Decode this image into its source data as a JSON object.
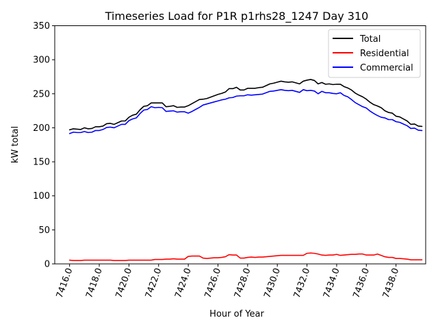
{
  "chart_data": {
    "type": "line",
    "title": "Timeseries Load for P1R p1rhs28_1247  Day 310",
    "xlabel": "Hour of Year",
    "ylabel": "kW total",
    "xlim": [
      7415.0,
      7440.0
    ],
    "ylim": [
      0,
      350
    ],
    "xticks": [
      7416.0,
      7418.0,
      7420.0,
      7422.0,
      7424.0,
      7426.0,
      7428.0,
      7430.0,
      7432.0,
      7434.0,
      7436.0,
      7438.0
    ],
    "xtick_labels": [
      "7416.0",
      "7418.0",
      "7420.0",
      "7422.0",
      "7424.0",
      "7426.0",
      "7428.0",
      "7430.0",
      "7432.0",
      "7434.0",
      "7436.0",
      "7438.0"
    ],
    "yticks": [
      0,
      50,
      100,
      150,
      200,
      250,
      300,
      350
    ],
    "ytick_labels": [
      "0",
      "50",
      "100",
      "150",
      "200",
      "250",
      "300",
      "350"
    ],
    "grid": false,
    "legend_position": "top-right",
    "x_start": 7416.0,
    "x_step": 0.25,
    "series": [
      {
        "name": "Total",
        "color": "#000000",
        "values": [
          197,
          198.5,
          198,
          197.5,
          200,
          198.5,
          199,
          201.5,
          201.5,
          202.5,
          206,
          206.5,
          205,
          207.5,
          210,
          210,
          215.5,
          218.5,
          220,
          226.5,
          231.5,
          232.5,
          236.5,
          236.5,
          236.5,
          236.5,
          231,
          231.5,
          232.5,
          230,
          230.5,
          230.5,
          232.5,
          235.5,
          238.5,
          241.5,
          242,
          243,
          245,
          247,
          249,
          250.5,
          252.5,
          257.5,
          257.5,
          259.5,
          255.5,
          255.5,
          258,
          258,
          258,
          259,
          259.5,
          262,
          264.5,
          265.5,
          267,
          268.5,
          267.5,
          267,
          267.5,
          266,
          264.5,
          268.5,
          270,
          271,
          269.5,
          264.5,
          266.5,
          264,
          264.5,
          263.5,
          264,
          264,
          260.5,
          258.5,
          255.5,
          251,
          248,
          245.5,
          242,
          237.5,
          234,
          232,
          229.5,
          225,
          222.5,
          221.5,
          217,
          216,
          213,
          210,
          205,
          205.5,
          202.5,
          202
        ]
      },
      {
        "name": "Residential",
        "color": "#ff0000",
        "values": [
          5.5,
          5,
          5,
          5,
          5.5,
          5.5,
          5.5,
          5.5,
          5.5,
          5.5,
          5.5,
          5.5,
          5,
          5,
          5,
          5,
          5.5,
          5.5,
          5.5,
          5.5,
          5.5,
          5.5,
          5.5,
          6.5,
          6.5,
          6.5,
          7,
          7,
          7.5,
          7,
          7,
          7,
          11,
          11.5,
          11.5,
          11.5,
          8.5,
          8,
          8.5,
          9,
          9,
          9.5,
          10.5,
          13.5,
          13,
          13,
          8.5,
          8.5,
          9.5,
          10,
          9.5,
          10,
          10,
          10.5,
          11,
          11.5,
          12,
          12.5,
          12.5,
          12.5,
          12.5,
          12.5,
          12.5,
          12.5,
          15.5,
          16,
          15.5,
          14.5,
          13,
          12.5,
          13,
          13,
          14,
          12.5,
          13,
          13.5,
          14,
          14,
          14.5,
          14.5,
          13,
          13,
          13,
          14.5,
          12.5,
          10.5,
          9.5,
          9.5,
          8,
          8,
          7.5,
          7,
          6,
          6,
          6,
          6
        ]
      },
      {
        "name": "Commercial",
        "color": "#0000ff",
        "values": [
          191.5,
          193.5,
          193,
          193,
          194.5,
          193,
          193.5,
          196,
          196,
          197.5,
          200.5,
          201,
          200,
          202.5,
          205,
          205,
          210.5,
          213,
          214.5,
          221,
          226,
          227,
          231,
          229.5,
          230,
          229.5,
          224,
          224.5,
          225,
          223,
          223.5,
          223.5,
          221.5,
          224,
          227,
          230,
          233.5,
          235,
          236.5,
          238,
          239.5,
          241,
          242,
          244,
          244.5,
          246.5,
          247,
          247,
          248.5,
          248,
          248.5,
          249,
          249.5,
          251.5,
          253.5,
          254,
          255,
          256,
          255,
          254.5,
          255,
          253.5,
          252,
          256,
          254.5,
          255,
          254,
          250,
          253.5,
          251.5,
          251.5,
          250.5,
          250,
          251.5,
          247.5,
          245.5,
          241.5,
          237,
          234,
          231,
          229,
          224.5,
          221,
          218,
          215.5,
          214.5,
          212,
          212,
          209,
          208,
          205.5,
          203,
          199,
          199.5,
          196.5,
          196
        ]
      }
    ]
  }
}
